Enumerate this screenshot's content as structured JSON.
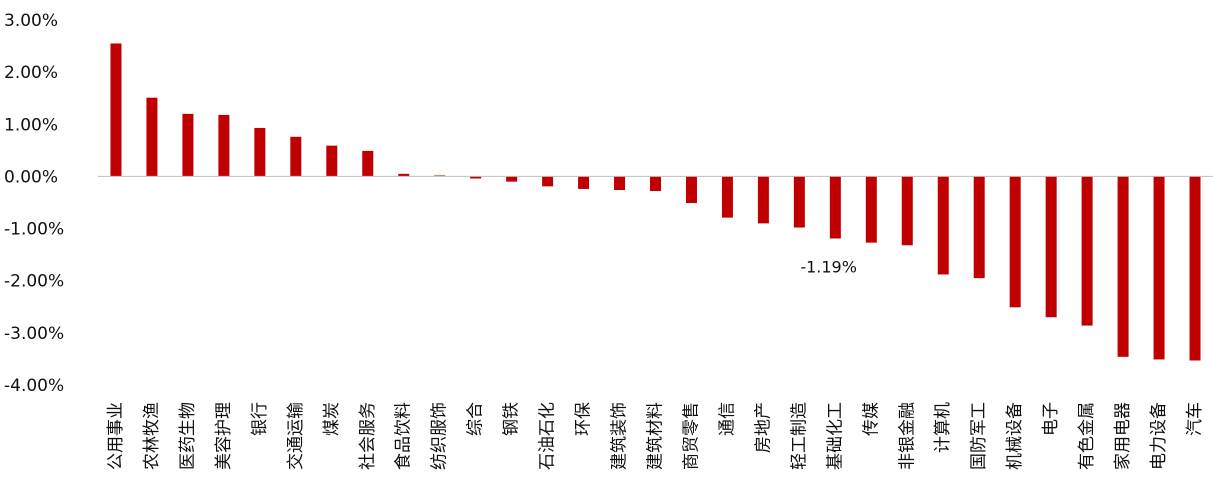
{
  "chart_data": {
    "type": "bar",
    "title": "",
    "xlabel": "",
    "ylabel": "",
    "ylim": [
      -4,
      3
    ],
    "yticks": [
      3,
      2,
      1,
      0,
      -1,
      -2,
      -3,
      -4
    ],
    "ytick_labels": [
      "3.00%",
      "2.00%",
      "1.00%",
      "0.00%",
      "-1.00%",
      "-2.00%",
      "-3.00%",
      "-4.00%"
    ],
    "grid": false,
    "bar_color": "#C00000",
    "categories": [
      "公用事业",
      "农林牧渔",
      "医药生物",
      "美容护理",
      "银行",
      "交通运输",
      "煤炭",
      "社会服务",
      "食品饮料",
      "纺织服饰",
      "综合",
      "钢铁",
      "石油石化",
      "环保",
      "建筑装饰",
      "建筑材料",
      "商贸零售",
      "通信",
      "房地产",
      "轻工制造",
      "基础化工",
      "传媒",
      "非银金融",
      "计算机",
      "国防军工",
      "机械设备",
      "电子",
      "有色金属",
      "家用电器",
      "电力设备",
      "汽车"
    ],
    "values": [
      2.55,
      1.51,
      1.2,
      1.18,
      0.93,
      0.76,
      0.59,
      0.49,
      0.05,
      0.02,
      -0.04,
      -0.1,
      -0.19,
      -0.24,
      -0.26,
      -0.28,
      -0.51,
      -0.79,
      -0.9,
      -0.98,
      -1.19,
      -1.27,
      -1.32,
      -1.88,
      -1.95,
      -2.51,
      -2.7,
      -2.86,
      -3.46,
      -3.51,
      -3.53
    ],
    "annotations": [
      {
        "category": "基础化工",
        "text": "-1.19%"
      }
    ]
  }
}
